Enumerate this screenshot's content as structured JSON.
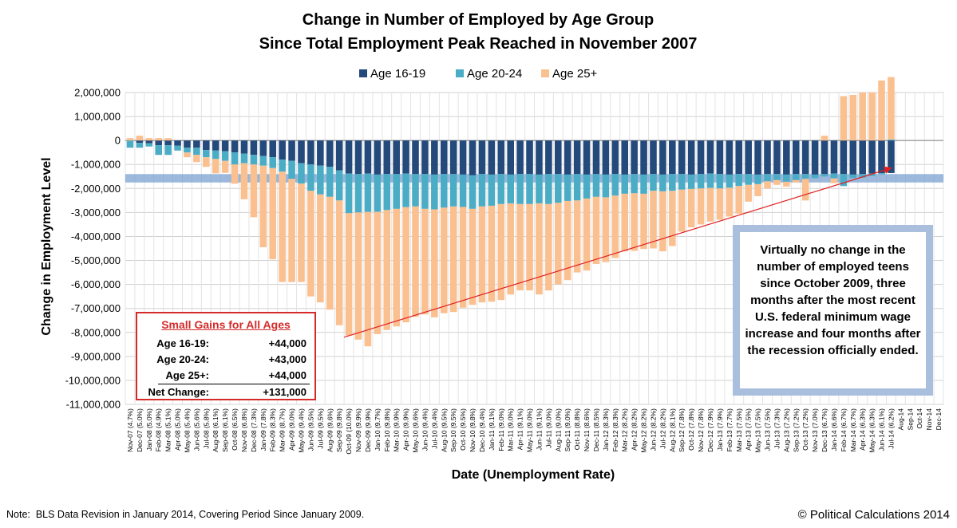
{
  "chart_data": {
    "type": "bar",
    "stacked": true,
    "title": "Change in Number of Employed by Age Group",
    "subtitle": "Since Total Employment Peak Reached in November 2007",
    "xlabel": "Date (Unemployment Rate)",
    "ylabel": "Change in Employment Level",
    "ylim": [
      -11000000,
      2000000
    ],
    "yticks": [
      2000000,
      1000000,
      0,
      -1000000,
      -2000000,
      -3000000,
      -4000000,
      -5000000,
      -6000000,
      -7000000,
      -8000000,
      -9000000,
      -10000000,
      -11000000
    ],
    "ytick_labels": [
      "2,000,000",
      "1,000,000",
      "0",
      "-1,000,000",
      "-2,000,000",
      "-3,000,000",
      "-4,000,000",
      "-5,000,000",
      "-6,000,000",
      "-7,000,000",
      "-8,000,000",
      "-9,000,000",
      "-10,000,000",
      "-11,000,000"
    ],
    "grid": true,
    "legend_position": "top",
    "categories": [
      "Nov-07 (4.7%)",
      "Dec-07 (5.0%)",
      "Jan-08 (5.0%)",
      "Feb-08 (4.9%)",
      "Mar-08 (5.1%)",
      "Apr-08 (5.0%)",
      "May-08 (5.4%)",
      "Jun-08 (5.6%)",
      "Jul-08 (5.8%)",
      "Aug-08 (6.1%)",
      "Sep-08 (6.1%)",
      "Oct-08 (6.5%)",
      "Nov-08 (6.8%)",
      "Dec-08 (7.3%)",
      "Jan-09 (7.8%)",
      "Feb-09 (8.3%)",
      "Mar-09 (8.7%)",
      "Apr-09 (9.0%)",
      "May-09 (9.4%)",
      "Jun-09 (9.5%)",
      "Jul-09 (9.5%)",
      "Aug-09 (9.6%)",
      "Sep-09 (9.8%)",
      "Oct-09 (10.0%)",
      "Nov-09 (9.9%)",
      "Dec-09 (9.9%)",
      "Jan-10 (9.7%)",
      "Feb-10 (9.8%)",
      "Mar-10 (9.9%)",
      "Apr-10 (9.9%)",
      "May-10 (9.6%)",
      "Jun-10 (9.4%)",
      "Jul-10 (9.4%)",
      "Aug-10 (9.5%)",
      "Sep-10 (9.5%)",
      "Oct-10 (9.5%)",
      "Nov-10 (9.8%)",
      "Dec-10 (9.4%)",
      "Jan-11 (9.1%)",
      "Feb-11 (9.0%)",
      "Mar-11 (9.0%)",
      "Apr-11 (9.1%)",
      "May-11 (9.0%)",
      "Jun-11 (9.1%)",
      "Jul-11 (9.0%)",
      "Aug-11 (9.0%)",
      "Sep-11 (9.0%)",
      "Oct-11 (8.8%)",
      "Nov-11 (8.6%)",
      "Dec-11 (8.5%)",
      "Jan-12 (8.3%)",
      "Feb-12 (8.3%)",
      "Mar-12 (8.2%)",
      "Apr-12 (8.2%)",
      "May-12 (8.2%)",
      "Jun-12 (8.2%)",
      "Jul-12 (8.2%)",
      "Aug-12 (8.1%)",
      "Sep-12 (7.8%)",
      "Oct-12 (7.8%)",
      "Nov-12 (7.8%)",
      "Dec-12 (7.9%)",
      "Jan-13 (7.9%)",
      "Feb-13 (7.7%)",
      "Mar-13 (7.5%)",
      "Apr-13 (7.5%)",
      "May-13 (7.5%)",
      "Jun-13 (7.5%)",
      "Jul-13 (7.3%)",
      "Aug-13 (7.2%)",
      "Sep-13 (7.2%)",
      "Oct-13 (7.2%)",
      "Nov-13 (7.0%)",
      "Dec-13 (6.7%)",
      "Jan-14 (6.6%)",
      "Feb-14 (6.7%)",
      "Mar-14 (6.7%)",
      "Apr-14 (6.3%)",
      "May-14 (6.3%)",
      "Jun-14 (6.1%)",
      "Jul-14 (6.2%)",
      "Aug-14",
      "Sep-14",
      "Oct-14",
      "Nov-14",
      "Dec-14"
    ],
    "series": [
      {
        "name": "Age 16-19",
        "color": "#244a7c",
        "values": [
          0,
          -100000,
          -120000,
          -200000,
          -200000,
          -220000,
          -300000,
          -300000,
          -400000,
          -420000,
          -450000,
          -500000,
          -550000,
          -600000,
          -650000,
          -700000,
          -800000,
          -850000,
          -950000,
          -1000000,
          -1050000,
          -1100000,
          -1250000,
          -1380000,
          -1400000,
          -1380000,
          -1420000,
          -1400000,
          -1400000,
          -1380000,
          -1400000,
          -1400000,
          -1420000,
          -1400000,
          -1400000,
          -1420000,
          -1450000,
          -1400000,
          -1420000,
          -1400000,
          -1420000,
          -1400000,
          -1400000,
          -1420000,
          -1400000,
          -1400000,
          -1420000,
          -1400000,
          -1420000,
          -1400000,
          -1420000,
          -1400000,
          -1420000,
          -1400000,
          -1420000,
          -1400000,
          -1420000,
          -1400000,
          -1400000,
          -1420000,
          -1400000,
          -1380000,
          -1400000,
          -1420000,
          -1400000,
          -1400000,
          -1420000,
          -1400000,
          -1400000,
          -1420000,
          -1400000,
          -1400000,
          -1420000,
          -1400000,
          -1380000,
          -1400000,
          -1420000,
          -1400000,
          -1380000,
          -1360000,
          -1356000,
          null,
          null,
          null,
          null,
          null
        ]
      },
      {
        "name": "Age 20-24",
        "color": "#4bacc6",
        "values": [
          -300000,
          -200000,
          -130000,
          -400000,
          -400000,
          -200000,
          -200000,
          -300000,
          -300000,
          -350000,
          -400000,
          -500000,
          -400000,
          -400000,
          -400000,
          -450000,
          -500000,
          -750000,
          -850000,
          -1100000,
          -1200000,
          -1250000,
          -1250000,
          -1650000,
          -1600000,
          -1600000,
          -1550000,
          -1500000,
          -1450000,
          -1400000,
          -1350000,
          -1450000,
          -1450000,
          -1400000,
          -1350000,
          -1350000,
          -1400000,
          -1350000,
          -1300000,
          -1250000,
          -1200000,
          -1250000,
          -1250000,
          -1200000,
          -1250000,
          -1200000,
          -1100000,
          -1100000,
          -1000000,
          -950000,
          -950000,
          -900000,
          -800000,
          -800000,
          -800000,
          -700000,
          -700000,
          -700000,
          -650000,
          -600000,
          -600000,
          -600000,
          -600000,
          -550000,
          -500000,
          -450000,
          -400000,
          -300000,
          -250000,
          -300000,
          -250000,
          -200000,
          -150000,
          -100000,
          -200000,
          -500000,
          -150000,
          -150000,
          -100000,
          -50000,
          43000,
          null,
          null,
          null,
          null,
          null
        ]
      },
      {
        "name": "Age 25+",
        "color": "#fac090",
        "values": [
          100000,
          200000,
          100000,
          100000,
          100000,
          0,
          -200000,
          -300000,
          -400000,
          -600000,
          -500000,
          -800000,
          -1500000,
          -2200000,
          -3400000,
          -3800000,
          -4600000,
          -4300000,
          -4100000,
          -4400000,
          -4500000,
          -4700000,
          -5200000,
          -5100000,
          -5300000,
          -5600000,
          -5100000,
          -5000000,
          -4900000,
          -4800000,
          -4600000,
          -4400000,
          -4500000,
          -4400000,
          -4400000,
          -4200000,
          -4000000,
          -4000000,
          -4000000,
          -4000000,
          -3800000,
          -3600000,
          -3600000,
          -3800000,
          -3600000,
          -3400000,
          -3300000,
          -3000000,
          -3000000,
          -2800000,
          -2700000,
          -2600000,
          -2400000,
          -2400000,
          -2300000,
          -2400000,
          -2500000,
          -2300000,
          -1750000,
          -1600000,
          -1500000,
          -1400000,
          -1300000,
          -1200000,
          -1150000,
          -700000,
          -500000,
          -300000,
          -200000,
          -200000,
          -100000,
          -900000,
          0,
          200000,
          -200000,
          1850000,
          1900000,
          2000000,
          2000000,
          2500000,
          2600000,
          null,
          null,
          null,
          null,
          null
        ]
      }
    ],
    "annotations": [
      {
        "type": "band",
        "y_range": [
          -1750000,
          -1400000
        ]
      },
      {
        "type": "arrow",
        "from_category": "Oct-09 (10.0%)",
        "from_y": -8200000,
        "to_category": "Jul-14 (6.2%)",
        "to_y": -1150000
      }
    ]
  },
  "legend": [
    {
      "label": "Age 16-19",
      "color": "#244a7c"
    },
    {
      "label": "Age 20-24",
      "color": "#4bacc6"
    },
    {
      "label": "Age 25+",
      "color": "#fac090"
    }
  ],
  "gains_box": {
    "title": "Small Gains for All Ages",
    "rows": [
      {
        "label": "Age 16-19:",
        "value": "+44,000"
      },
      {
        "label": "Age 20-24:",
        "value": "+43,000"
      },
      {
        "label": "Age 25+:",
        "value": "+44,000"
      },
      {
        "label": "Net Change:",
        "value": "+131,000"
      }
    ]
  },
  "callout": "Virtually no change in the number of employed teens since October 2009, three months after the most recent U.S. federal minimum wage increase and four months after the recession officially ended.",
  "note": "Note:  BLS Data Revision in January 2014, Covering Period Since January 2009.",
  "credit": "© Political Calculations 2014",
  "colors": {
    "band": "#7ba1d2",
    "arrow": "#e02020",
    "callout_border": "#a9bfdd",
    "gains_border": "#d42a2a",
    "grid": "#d0d0d0"
  }
}
